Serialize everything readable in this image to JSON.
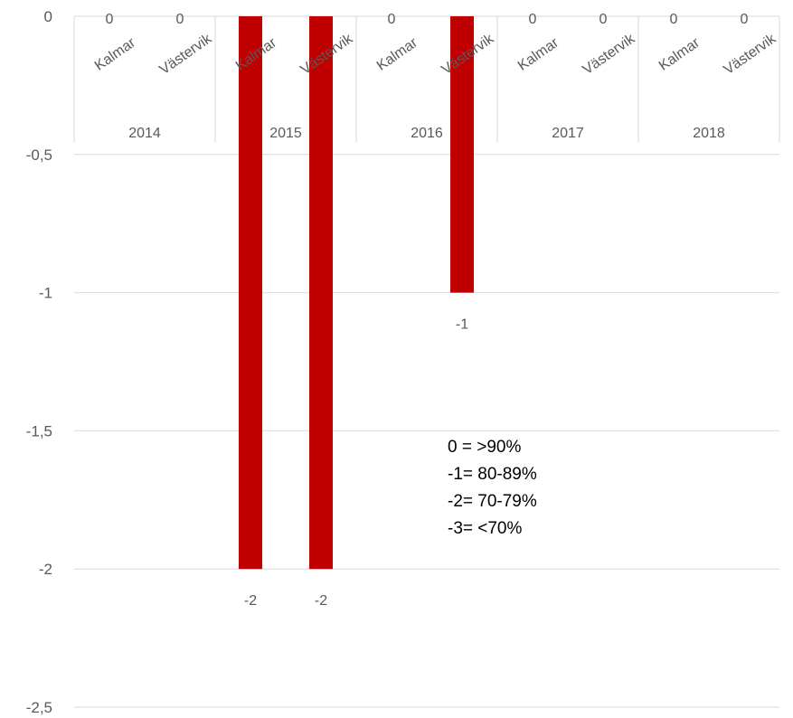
{
  "chart_data": {
    "type": "bar",
    "groups": [
      "2014",
      "2015",
      "2016",
      "2017",
      "2018"
    ],
    "categories": [
      "Kalmar",
      "Västervik",
      "Kalmar",
      "Västervik",
      "Kalmar",
      "Västervik",
      "Kalmar",
      "Västervik",
      "Kalmar",
      "Västervik"
    ],
    "group_of_category": [
      "2014",
      "2014",
      "2015",
      "2015",
      "2016",
      "2016",
      "2017",
      "2017",
      "2018",
      "2018"
    ],
    "values": [
      0,
      0,
      -2,
      -2,
      0,
      -1,
      0,
      0,
      0,
      0
    ],
    "ylim": [
      -2.5,
      0
    ],
    "y_ticks": [
      0,
      -0.5,
      -1,
      -1.5,
      -2,
      -2.5
    ],
    "y_tick_labels": [
      "0",
      "-0,5",
      "-1",
      "-1,5",
      "-2",
      "-2,5"
    ],
    "title": "",
    "xlabel": "",
    "ylabel": "",
    "grid": true,
    "legend": "none",
    "bar_color": "#c00000",
    "annotation": [
      "0 = >90%",
      "-1= 80-89%",
      "-2= 70-79%",
      "-3= <70%"
    ]
  }
}
